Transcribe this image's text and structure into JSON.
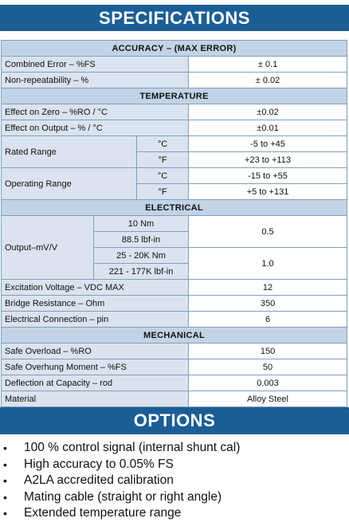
{
  "specifications_title": "SPECIFICATIONS",
  "options_title": "OPTIONS",
  "sections": {
    "accuracy": "ACCURACY – (MAX ERROR)",
    "temperature": "TEMPERATURE",
    "electrical": "ELECTRICAL",
    "mechanical": "MECHANICAL"
  },
  "accuracy": {
    "combined_error": {
      "label": "Combined Error – %FS",
      "value": "± 0.1"
    },
    "non_repeatability": {
      "label": "Non-repeatability – %",
      "value": "± 0.02"
    }
  },
  "temperature": {
    "effect_zero": {
      "label": "Effect on Zero – %RO / °C",
      "value": "±0.02"
    },
    "effect_output": {
      "label": "Effect on Output – % / °C",
      "value": "±0.01"
    },
    "rated_range": {
      "label": "Rated Range",
      "unit_c": "°C",
      "value_c": "-5 to +45",
      "unit_f": "°F",
      "value_f": "+23 to +113"
    },
    "operating_range": {
      "label": "Operating Range",
      "unit_c": "°C",
      "value_c": "-15 to +55",
      "unit_f": "°F",
      "value_f": "+5 to +131"
    }
  },
  "electrical": {
    "output": {
      "label": "Output–mV/V",
      "cap_1": "10 Nm",
      "cap_2": "88.5 lbf-in",
      "value_1": "0.5",
      "cap_3": "25 - 20K Nm",
      "cap_4": "221 - 177K lbf-in",
      "value_2": "1.0"
    },
    "excitation": {
      "label": "Excitation Voltage – VDC MAX",
      "value": "12"
    },
    "bridge": {
      "label": "Bridge Resistance – Ohm",
      "value": "350"
    },
    "connection": {
      "label": "Electrical Connection – pin",
      "value": "6"
    }
  },
  "mechanical": {
    "safe_overload": {
      "label": "Safe Overload – %RO",
      "value": "150"
    },
    "overhung": {
      "label": "Safe Overhung Moment – %FS",
      "value": "50"
    },
    "deflection": {
      "label": "Deflection at Capacity – rod",
      "value": "0.003"
    },
    "material": {
      "label": "Material",
      "value": "Alloy Steel"
    }
  },
  "options": [
    "100 % control signal (internal shunt cal)",
    "High accuracy to 0.05% FS",
    "A2LA accredited calibration",
    "Mating cable (straight or right angle)",
    "Extended temperature range"
  ],
  "bullet_glyph": "•"
}
